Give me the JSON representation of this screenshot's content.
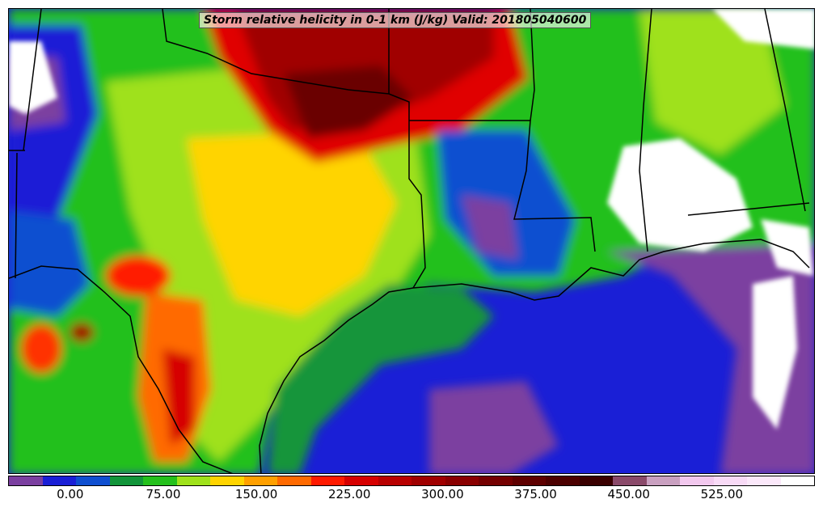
{
  "title": "Storm relative helicity in 0-1 km (J/kg) Valid: 201805040600",
  "colorbar": {
    "colors": [
      "#7b3fa0",
      "#1a1fd6",
      "#0f4fd0",
      "#12953a",
      "#24c01c",
      "#9fe11b",
      "#ffd400",
      "#ffa000",
      "#ff6a00",
      "#ff1a00",
      "#d60000",
      "#b80000",
      "#a00000",
      "#8a0000",
      "#740000",
      "#5e0000",
      "#4c0000",
      "#3a0000",
      "#8a4a6a",
      "#c9a0c0",
      "#f2c8ee",
      "#f8daf6",
      "#fbe8fa",
      "#ffffff"
    ],
    "tick_values": [
      0,
      75,
      150,
      225,
      300,
      375,
      450,
      525
    ],
    "tick_labels": [
      "0.00",
      "75.00",
      "150.00",
      "225.00",
      "300.00",
      "375.00",
      "450.00",
      "525.00"
    ],
    "range": [
      -50,
      600
    ]
  }
}
